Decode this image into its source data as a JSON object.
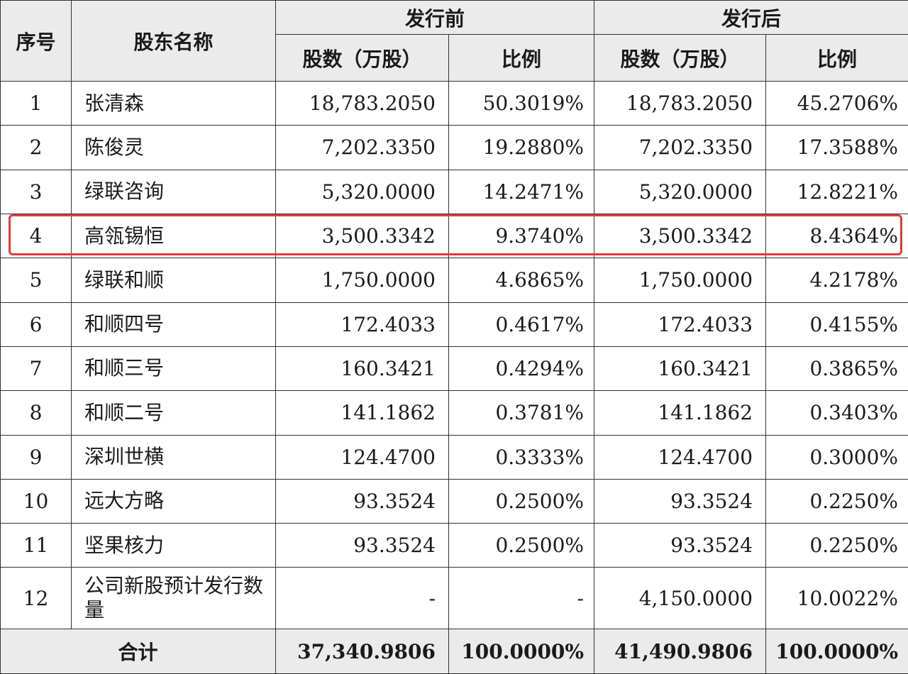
{
  "header": {
    "seq": "序号",
    "name": "股东名称",
    "before": "发行前",
    "after": "发行后",
    "shares": "股数（万股）",
    "ratio": "比例"
  },
  "rows": [
    {
      "seq": "1",
      "name": "张清森",
      "before_shares": "18,783.2050",
      "before_ratio": "50.3019%",
      "after_shares": "18,783.2050",
      "after_ratio": "45.2706%"
    },
    {
      "seq": "2",
      "name": "陈俊灵",
      "before_shares": "7,202.3350",
      "before_ratio": "19.2880%",
      "after_shares": "7,202.3350",
      "after_ratio": "17.3588%"
    },
    {
      "seq": "3",
      "name": "绿联咨询",
      "before_shares": "5,320.0000",
      "before_ratio": "14.2471%",
      "after_shares": "5,320.0000",
      "after_ratio": "12.8221%"
    },
    {
      "seq": "4",
      "name": "高瓴锡恒",
      "before_shares": "3,500.3342",
      "before_ratio": "9.3740%",
      "after_shares": "3,500.3342",
      "after_ratio": "8.4364%"
    },
    {
      "seq": "5",
      "name": "绿联和顺",
      "before_shares": "1,750.0000",
      "before_ratio": "4.6865%",
      "after_shares": "1,750.0000",
      "after_ratio": "4.2178%"
    },
    {
      "seq": "6",
      "name": "和顺四号",
      "before_shares": "172.4033",
      "before_ratio": "0.4617%",
      "after_shares": "172.4033",
      "after_ratio": "0.4155%"
    },
    {
      "seq": "7",
      "name": "和顺三号",
      "before_shares": "160.3421",
      "before_ratio": "0.4294%",
      "after_shares": "160.3421",
      "after_ratio": "0.3865%"
    },
    {
      "seq": "8",
      "name": "和顺二号",
      "before_shares": "141.1862",
      "before_ratio": "0.3781%",
      "after_shares": "141.1862",
      "after_ratio": "0.3403%"
    },
    {
      "seq": "9",
      "name": "深圳世横",
      "before_shares": "124.4700",
      "before_ratio": "0.3333%",
      "after_shares": "124.4700",
      "after_ratio": "0.3000%"
    },
    {
      "seq": "10",
      "name": "远大方略",
      "before_shares": "93.3524",
      "before_ratio": "0.2500%",
      "after_shares": "93.3524",
      "after_ratio": "0.2250%"
    },
    {
      "seq": "11",
      "name": "坚果核力",
      "before_shares": "93.3524",
      "before_ratio": "0.2500%",
      "after_shares": "93.3524",
      "after_ratio": "0.2250%"
    },
    {
      "seq": "12",
      "name": "公司新股预计发行数量",
      "before_shares": "-",
      "before_ratio": "-",
      "after_shares": "4,150.0000",
      "after_ratio": "10.0022%"
    }
  ],
  "total": {
    "label": "合计",
    "before_shares": "37,340.9806",
    "before_ratio": "100.0000%",
    "after_shares": "41,490.9806",
    "after_ratio": "100.0000%"
  },
  "highlight": {
    "row_seq": "4",
    "color": "#e23a3a"
  }
}
